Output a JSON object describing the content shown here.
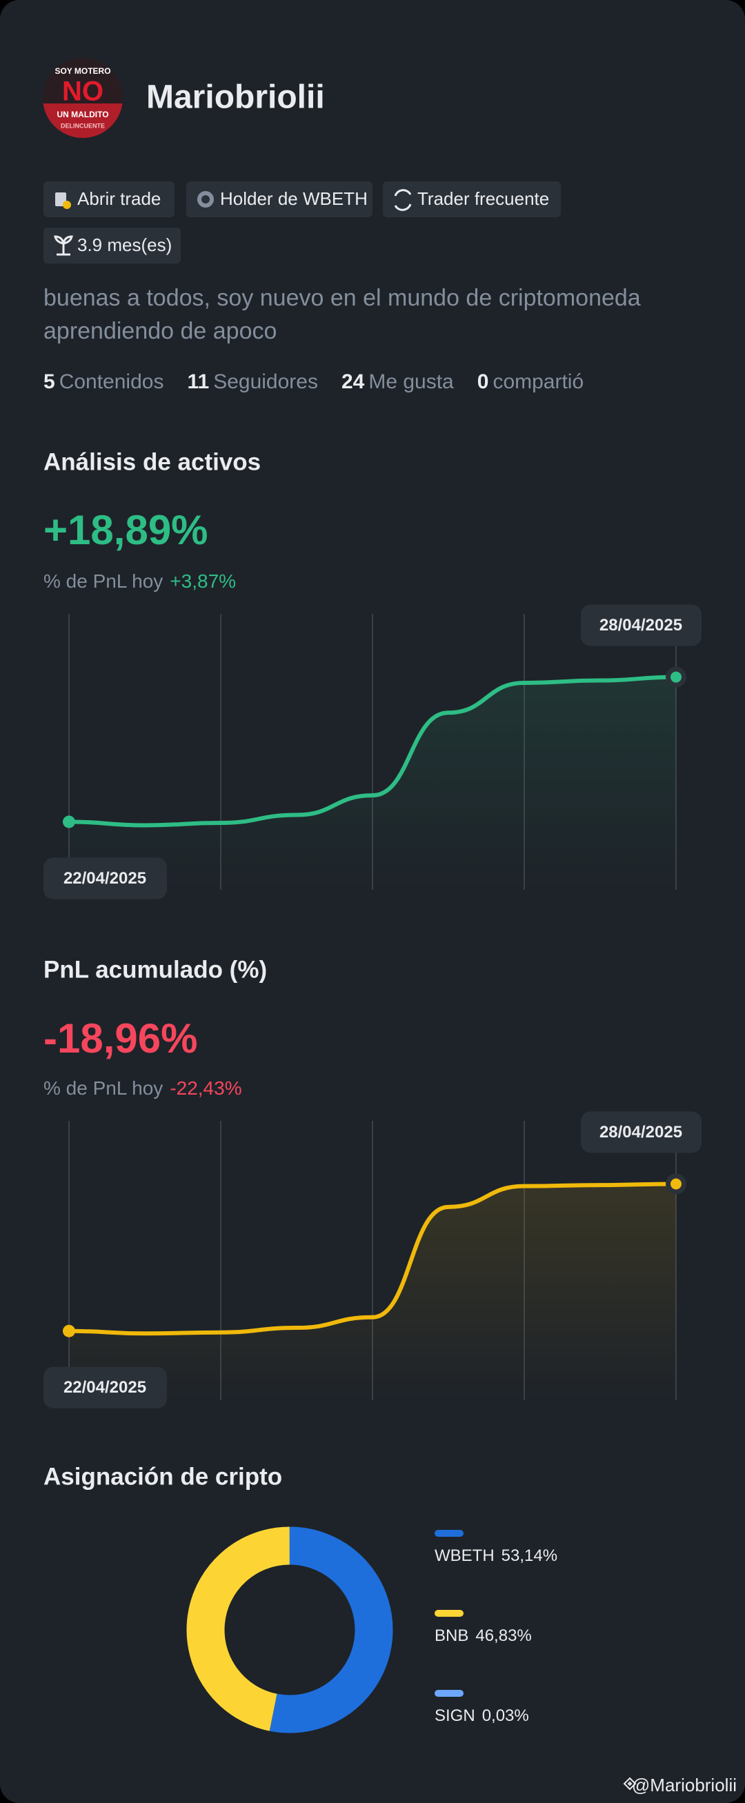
{
  "profile": {
    "avatar_text": [
      "SOY MOTERO",
      "NO",
      "UN MALDITO",
      "DELINCUENTE"
    ],
    "name": "Mariobriolii",
    "tags": [
      "Abrir trade",
      "Holder de WBETH",
      "Trader frecuente",
      "3.9 mes(es)"
    ],
    "bio": [
      "buenas a todos,  soy nuevo en el mundo de criptomoneda",
      "aprendiendo de apoco"
    ],
    "stats": [
      {
        "count": 5,
        "label": "Contenidos"
      },
      {
        "count": 11,
        "label": "Seguidores"
      },
      {
        "count": 24,
        "label": "Me gusta"
      },
      {
        "count": 0,
        "label": "compartió"
      }
    ]
  },
  "chart_data": [
    {
      "type": "line",
      "title": "Análisis de activos",
      "headline": "+18,89%",
      "subtitle": "% de PnL hoy",
      "change": "+3,87%",
      "categories": [
        "22/04/2025",
        null,
        null,
        null,
        null,
        null,
        null,
        null,
        "28/04/2025"
      ],
      "values": [
        23.9,
        22.6,
        23.5,
        26.5,
        33.9,
        65.2,
        76.5,
        77.4,
        78.7
      ],
      "color": "#2ebd85",
      "ylim": [
        0,
        100
      ]
    },
    {
      "type": "line",
      "title": "PnL acumulado (%)",
      "headline": "-18,96%",
      "subtitle": "% de PnL hoy",
      "change": "-22,43%",
      "categories": [
        "22/04/2025",
        null,
        null,
        null,
        null,
        null,
        null,
        null,
        "28/04/2025"
      ],
      "values": [
        24.3,
        23.4,
        23.8,
        25.5,
        29.4,
        70.2,
        77.9,
        78.3,
        78.7
      ],
      "color": "#f0b90b",
      "ylim": [
        0,
        100
      ]
    },
    {
      "type": "pie",
      "title": "Asignación de cripto",
      "categories": [
        "WBETH",
        "BNB",
        "SIGN"
      ],
      "values": [
        53.14,
        46.83,
        0.03
      ],
      "value_labels": [
        "53,14%",
        "46,83%",
        "0,03%"
      ],
      "colors": [
        "#1e6fdc",
        "#fcd535",
        "#6ea8fe"
      ]
    }
  ],
  "footer": {
    "watermark": "@Mariobriolii"
  }
}
